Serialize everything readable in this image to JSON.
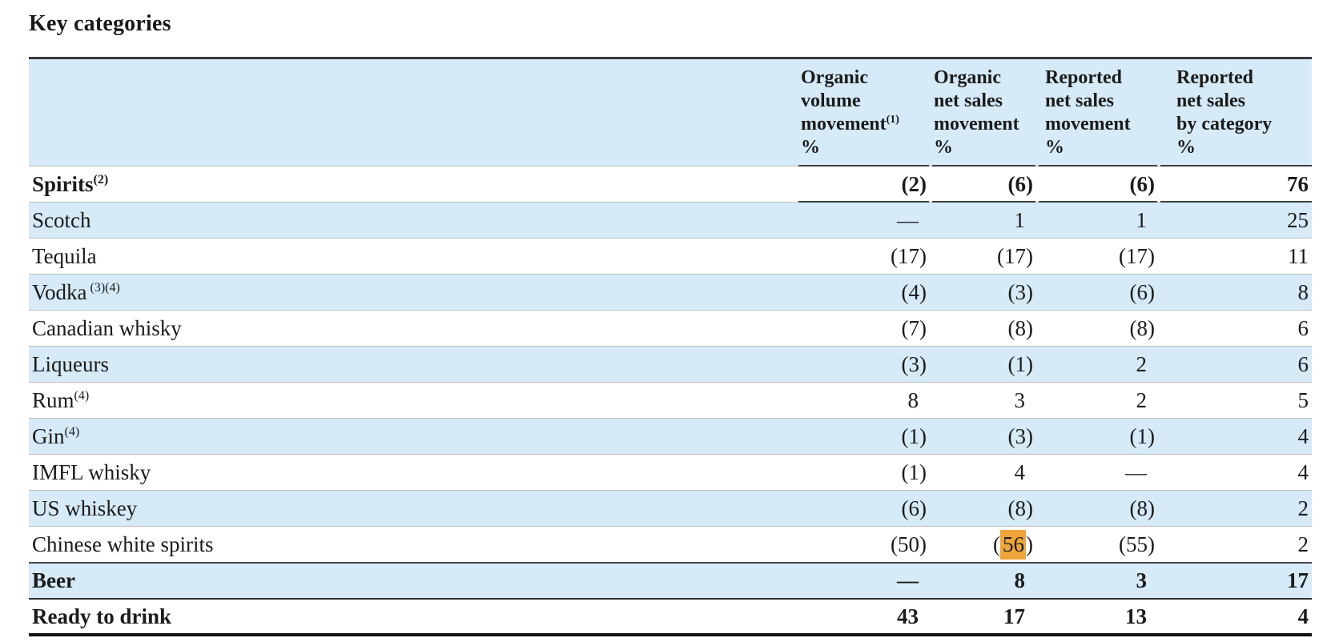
{
  "title": "Key categories",
  "colors": {
    "row_shade": "#D6EAF8",
    "highlight": "#EFA53C"
  },
  "table": {
    "columns": [
      {
        "line1": "Organic",
        "line2": "volume",
        "line3": "movement",
        "line3_sup": "(1)",
        "line4": "%"
      },
      {
        "line1": "Organic",
        "line2": "net sales",
        "line3": "movement",
        "line4": "%"
      },
      {
        "line1": "Reported",
        "line2": "net sales",
        "line3": "movement",
        "line4": "%"
      },
      {
        "line1": "Reported",
        "line2": "net sales",
        "line3": "by category",
        "line4": "%"
      }
    ],
    "rows": [
      {
        "label": "Spirits",
        "sup": "(2)",
        "v1": "(2)",
        "v2": "(6)",
        "v3": "(6)",
        "v4": "76"
      },
      {
        "label": "Scotch",
        "v1": "—",
        "v2": "1",
        "v3": "1",
        "v4": "25"
      },
      {
        "label": "Tequila",
        "v1": "(17)",
        "v2": "(17)",
        "v3": "(17)",
        "v4": "11"
      },
      {
        "label": "Vodka",
        "sup": "(3)(4)",
        "v1": "(4)",
        "v2": "(3)",
        "v3": "(6)",
        "v4": "8"
      },
      {
        "label": "Canadian whisky",
        "v1": "(7)",
        "v2": "(8)",
        "v3": "(8)",
        "v4": "6"
      },
      {
        "label": "Liqueurs",
        "v1": "(3)",
        "v2": "(1)",
        "v3": "2",
        "v4": "6"
      },
      {
        "label": "Rum",
        "sup": "(4)",
        "v1": "8",
        "v2": "3",
        "v3": "2",
        "v4": "5"
      },
      {
        "label": "Gin",
        "sup": "(4)",
        "v1": "(1)",
        "v2": "(3)",
        "v3": "(1)",
        "v4": "4"
      },
      {
        "label": "IMFL whisky",
        "v1": "(1)",
        "v2": "4",
        "v3": "—",
        "v4": "4"
      },
      {
        "label": "US whiskey",
        "v1": "(6)",
        "v2": "(8)",
        "v3": "(8)",
        "v4": "2"
      },
      {
        "label": "Chinese white spirits",
        "v1": "(50)",
        "v2": "(56)",
        "v3": "(55)",
        "v4": "2"
      },
      {
        "label": "Beer",
        "v1": "—",
        "v2": "8",
        "v3": "3",
        "v4": "17"
      },
      {
        "label": "Ready to drink",
        "v1": "43",
        "v2": "17",
        "v3": "13",
        "v4": "4"
      }
    ],
    "hl_cell": {
      "open": "(",
      "digits": "56",
      "close": ")",
      "color": "#EFA53C"
    }
  }
}
